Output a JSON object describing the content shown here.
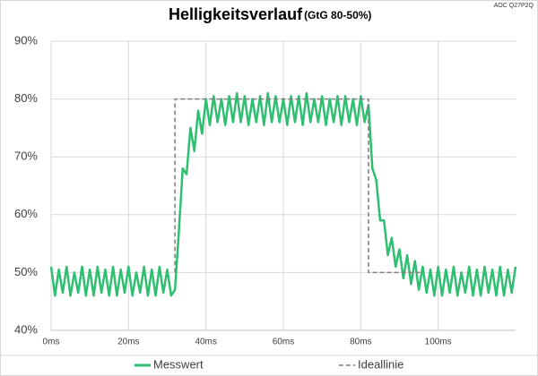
{
  "chart_data": {
    "type": "line",
    "title": "Helligkeitsverlauf",
    "subtitle": "(GtG 80-50%)",
    "annotation": "AOC Q27P2Q",
    "xlim": [
      0,
      120
    ],
    "xticks": [
      {
        "value": 0,
        "label": "0ms"
      },
      {
        "value": 20,
        "label": "20ms"
      },
      {
        "value": 40,
        "label": "40ms"
      },
      {
        "value": 60,
        "label": "60ms"
      },
      {
        "value": 80,
        "label": "80ms"
      },
      {
        "value": 100,
        "label": "100ms"
      }
    ],
    "ylim": [
      40,
      90
    ],
    "yticks": [
      {
        "value": 40,
        "label": "40%"
      },
      {
        "value": 50,
        "label": "50%"
      },
      {
        "value": 60,
        "label": "60%"
      },
      {
        "value": 70,
        "label": "70%"
      },
      {
        "value": 80,
        "label": "80%"
      },
      {
        "value": 90,
        "label": "90%"
      }
    ],
    "grid": true,
    "series": [
      {
        "name": "Ideallinie",
        "color": "#7f7f7f",
        "dashed": true,
        "x": [
          32,
          32,
          82,
          82,
          96
        ],
        "values": [
          50,
          80,
          80,
          50,
          50
        ]
      },
      {
        "name": "Messwert",
        "color": "#2fbf71",
        "dashed": false,
        "x": [
          0,
          1,
          2,
          3,
          4,
          5,
          6,
          7,
          8,
          9,
          10,
          11,
          12,
          13,
          14,
          15,
          16,
          17,
          18,
          19,
          20,
          21,
          22,
          23,
          24,
          25,
          26,
          27,
          28,
          29,
          30,
          31,
          32,
          33,
          34,
          35,
          36,
          37,
          38,
          39,
          40,
          41,
          42,
          43,
          44,
          45,
          46,
          47,
          48,
          49,
          50,
          51,
          52,
          53,
          54,
          55,
          56,
          57,
          58,
          59,
          60,
          61,
          62,
          63,
          64,
          65,
          66,
          67,
          68,
          69,
          70,
          71,
          72,
          73,
          74,
          75,
          76,
          77,
          78,
          79,
          80,
          81,
          82,
          83,
          84,
          85,
          86,
          87,
          88,
          89,
          90,
          91,
          92,
          93,
          94,
          95,
          96,
          97,
          98,
          99,
          100,
          101,
          102,
          103,
          104,
          105,
          106,
          107,
          108,
          109,
          110,
          111,
          112,
          113,
          114,
          115,
          116,
          117,
          118,
          119,
          120
        ],
        "values": [
          51,
          46,
          50.5,
          46.5,
          51,
          46,
          50,
          46.5,
          51,
          46,
          50.5,
          46,
          51,
          46.5,
          50.5,
          46,
          51,
          46,
          50.5,
          46.5,
          51,
          46,
          50,
          46.5,
          51,
          46,
          50.5,
          46,
          51,
          46.5,
          50.5,
          46,
          47,
          57,
          68,
          67,
          75,
          71,
          78,
          74,
          80,
          75.5,
          80.5,
          76,
          80,
          75.5,
          80.5,
          76,
          81,
          76,
          80.5,
          75.5,
          80,
          76,
          80.5,
          75.5,
          81,
          76,
          80.5,
          76,
          80,
          75.5,
          80.5,
          76,
          80.5,
          75.5,
          81,
          76,
          80,
          76,
          80.5,
          75.5,
          80,
          76,
          80.5,
          75.5,
          80.5,
          76,
          80,
          75.5,
          80.5,
          76,
          79,
          68,
          66,
          59,
          59,
          53,
          56,
          51,
          54,
          49,
          53,
          48,
          52,
          47,
          51,
          46.5,
          50.5,
          46,
          51,
          46,
          50.5,
          46.5,
          51,
          46,
          50,
          46.5,
          51,
          46,
          50.5,
          46,
          51,
          46.5,
          50.5,
          46,
          51,
          46,
          50.5,
          46.5,
          51
        ]
      }
    ],
    "legend": "bottom"
  }
}
